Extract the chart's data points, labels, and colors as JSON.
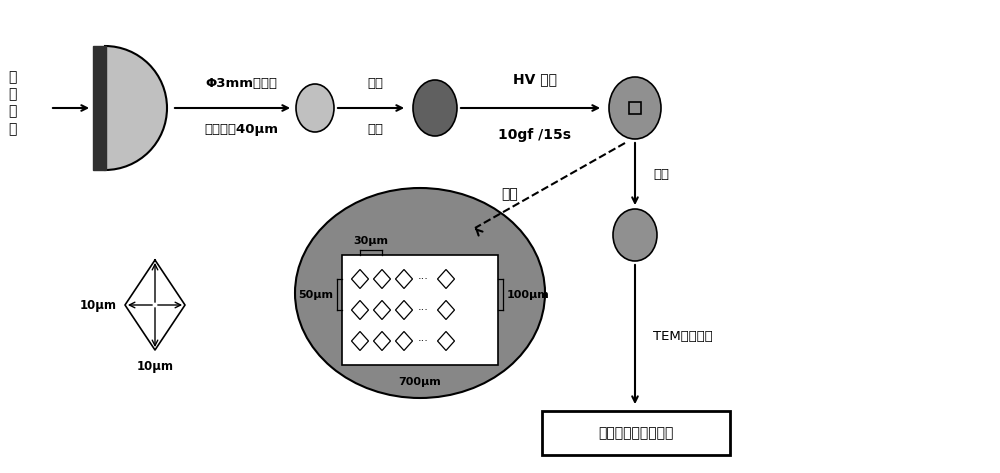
{
  "bg_color": "#ffffff",
  "light_gray": "#c0c0c0",
  "dark_gray": "#606060",
  "medium_gray": "#909090",
  "text_color": "#000000",
  "fig_width": 10.0,
  "fig_height": 4.73,
  "xlim": [
    0,
    10
  ],
  "ylim": [
    0,
    4.73
  ]
}
